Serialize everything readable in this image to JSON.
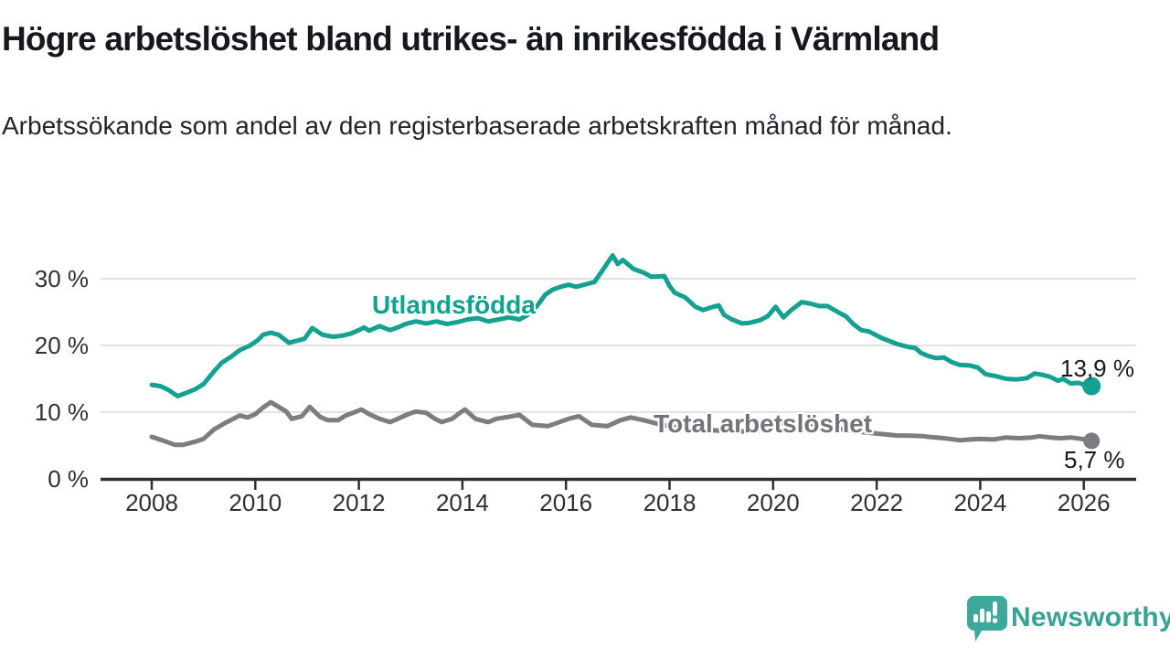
{
  "header": {
    "title": "Högre arbetslöshet bland utrikes- än inrikesfödda i Värmland",
    "subtitle": "Arbetssökande som andel av den registerbaserade arbetskraften månad för månad."
  },
  "chart_data": {
    "type": "line",
    "title": "Högre arbetslöshet bland utrikes- än inrikesfödda i Värmland",
    "subtitle": "Arbetssökande som andel av den registerbaserade arbetskraften månad för månad.",
    "grid": "horizontal-only",
    "x_axis": {
      "range": [
        2007.0,
        2027.0
      ],
      "ticks": [
        2008,
        2010,
        2012,
        2014,
        2016,
        2018,
        2020,
        2022,
        2024,
        2026
      ]
    },
    "y_axis": {
      "unit": "%",
      "range": [
        0,
        35
      ],
      "ticks": [
        {
          "value": 0,
          "label": "0 %"
        },
        {
          "value": 10,
          "label": "10 %"
        },
        {
          "value": 20,
          "label": "20 %"
        },
        {
          "value": 30,
          "label": "30 %"
        }
      ]
    },
    "colors": {
      "series_teal": "#15a191",
      "series_gray": "#7c7c81",
      "gridline": "#d9d9d9",
      "axis": "#2f2f34",
      "axis_text": "#2d3136"
    },
    "series": [
      {
        "name": "Utlandsfödda",
        "color": "#15a191",
        "end_label": "13,9 %",
        "end_value": 13.9,
        "points": [
          [
            2008.0,
            14.1
          ],
          [
            2008.17,
            13.9
          ],
          [
            2008.33,
            13.3
          ],
          [
            2008.5,
            12.4
          ],
          [
            2008.67,
            12.9
          ],
          [
            2008.83,
            13.4
          ],
          [
            2009.0,
            14.2
          ],
          [
            2009.2,
            16.1
          ],
          [
            2009.35,
            17.4
          ],
          [
            2009.55,
            18.4
          ],
          [
            2009.7,
            19.3
          ],
          [
            2009.9,
            20.0
          ],
          [
            2010.05,
            20.8
          ],
          [
            2010.15,
            21.6
          ],
          [
            2010.3,
            21.9
          ],
          [
            2010.45,
            21.6
          ],
          [
            2010.65,
            20.4
          ],
          [
            2010.8,
            20.7
          ],
          [
            2010.95,
            21.0
          ],
          [
            2011.1,
            22.6
          ],
          [
            2011.3,
            21.6
          ],
          [
            2011.5,
            21.3
          ],
          [
            2011.7,
            21.5
          ],
          [
            2011.85,
            21.8
          ],
          [
            2012.0,
            22.3
          ],
          [
            2012.1,
            22.7
          ],
          [
            2012.2,
            22.2
          ],
          [
            2012.4,
            22.9
          ],
          [
            2012.6,
            22.3
          ],
          [
            2012.75,
            22.7
          ],
          [
            2012.9,
            23.2
          ],
          [
            2013.1,
            23.6
          ],
          [
            2013.3,
            23.3
          ],
          [
            2013.5,
            23.6
          ],
          [
            2013.7,
            23.2
          ],
          [
            2013.9,
            23.5
          ],
          [
            2014.1,
            23.9
          ],
          [
            2014.3,
            24.1
          ],
          [
            2014.5,
            23.6
          ],
          [
            2014.7,
            23.9
          ],
          [
            2014.9,
            24.2
          ],
          [
            2015.1,
            23.9
          ],
          [
            2015.25,
            24.5
          ],
          [
            2015.45,
            26.0
          ],
          [
            2015.6,
            27.6
          ],
          [
            2015.75,
            28.4
          ],
          [
            2015.9,
            28.8
          ],
          [
            2016.05,
            29.1
          ],
          [
            2016.2,
            28.8
          ],
          [
            2016.35,
            29.1
          ],
          [
            2016.55,
            29.5
          ],
          [
            2016.7,
            31.2
          ],
          [
            2016.9,
            33.5
          ],
          [
            2017.0,
            32.2
          ],
          [
            2017.1,
            32.8
          ],
          [
            2017.3,
            31.5
          ],
          [
            2017.5,
            30.9
          ],
          [
            2017.65,
            30.3
          ],
          [
            2017.9,
            30.4
          ],
          [
            2018.0,
            28.9
          ],
          [
            2018.1,
            27.9
          ],
          [
            2018.3,
            27.2
          ],
          [
            2018.5,
            25.8
          ],
          [
            2018.65,
            25.3
          ],
          [
            2018.8,
            25.7
          ],
          [
            2018.95,
            26.0
          ],
          [
            2019.05,
            24.6
          ],
          [
            2019.2,
            23.9
          ],
          [
            2019.4,
            23.3
          ],
          [
            2019.55,
            23.4
          ],
          [
            2019.75,
            23.8
          ],
          [
            2019.9,
            24.4
          ],
          [
            2020.05,
            25.8
          ],
          [
            2020.2,
            24.2
          ],
          [
            2020.35,
            25.3
          ],
          [
            2020.55,
            26.5
          ],
          [
            2020.7,
            26.3
          ],
          [
            2020.9,
            25.9
          ],
          [
            2021.05,
            25.9
          ],
          [
            2021.25,
            25.0
          ],
          [
            2021.4,
            24.4
          ],
          [
            2021.55,
            23.2
          ],
          [
            2021.7,
            22.3
          ],
          [
            2021.85,
            22.1
          ],
          [
            2022.1,
            21.1
          ],
          [
            2022.4,
            20.2
          ],
          [
            2022.6,
            19.8
          ],
          [
            2022.75,
            19.6
          ],
          [
            2022.85,
            18.9
          ],
          [
            2023.0,
            18.4
          ],
          [
            2023.15,
            18.1
          ],
          [
            2023.3,
            18.2
          ],
          [
            2023.45,
            17.5
          ],
          [
            2023.6,
            17.1
          ],
          [
            2023.8,
            17.0
          ],
          [
            2023.95,
            16.7
          ],
          [
            2024.1,
            15.7
          ],
          [
            2024.3,
            15.4
          ],
          [
            2024.5,
            15.0
          ],
          [
            2024.7,
            14.9
          ],
          [
            2024.9,
            15.1
          ],
          [
            2025.05,
            15.8
          ],
          [
            2025.2,
            15.6
          ],
          [
            2025.35,
            15.3
          ],
          [
            2025.5,
            14.7
          ],
          [
            2025.6,
            15.0
          ],
          [
            2025.75,
            14.3
          ],
          [
            2025.9,
            14.4
          ],
          [
            2026.0,
            14.1
          ],
          [
            2026.15,
            13.9
          ]
        ]
      },
      {
        "name": "Total arbetslöshet",
        "color": "#7c7c81",
        "end_label": "5,7 %",
        "end_value": 5.7,
        "points": [
          [
            2008.0,
            6.3
          ],
          [
            2008.2,
            5.8
          ],
          [
            2008.45,
            5.1
          ],
          [
            2008.6,
            5.1
          ],
          [
            2008.85,
            5.6
          ],
          [
            2009.0,
            6.0
          ],
          [
            2009.2,
            7.4
          ],
          [
            2009.4,
            8.3
          ],
          [
            2009.6,
            9.1
          ],
          [
            2009.7,
            9.5
          ],
          [
            2009.85,
            9.2
          ],
          [
            2010.0,
            9.7
          ],
          [
            2010.15,
            10.7
          ],
          [
            2010.3,
            11.5
          ],
          [
            2010.45,
            10.8
          ],
          [
            2010.6,
            10.1
          ],
          [
            2010.7,
            9.0
          ],
          [
            2010.9,
            9.4
          ],
          [
            2011.05,
            10.8
          ],
          [
            2011.25,
            9.3
          ],
          [
            2011.4,
            8.8
          ],
          [
            2011.6,
            8.8
          ],
          [
            2011.75,
            9.5
          ],
          [
            2011.95,
            10.1
          ],
          [
            2012.05,
            10.4
          ],
          [
            2012.2,
            9.7
          ],
          [
            2012.4,
            9.0
          ],
          [
            2012.6,
            8.5
          ],
          [
            2012.75,
            9.0
          ],
          [
            2012.95,
            9.7
          ],
          [
            2013.1,
            10.1
          ],
          [
            2013.3,
            9.9
          ],
          [
            2013.45,
            9.1
          ],
          [
            2013.6,
            8.5
          ],
          [
            2013.8,
            9.0
          ],
          [
            2013.95,
            9.9
          ],
          [
            2014.05,
            10.4
          ],
          [
            2014.25,
            9.0
          ],
          [
            2014.5,
            8.5
          ],
          [
            2014.65,
            9.0
          ],
          [
            2014.9,
            9.3
          ],
          [
            2015.1,
            9.6
          ],
          [
            2015.35,
            8.1
          ],
          [
            2015.65,
            7.9
          ],
          [
            2016.05,
            9.0
          ],
          [
            2016.25,
            9.4
          ],
          [
            2016.5,
            8.1
          ],
          [
            2016.8,
            7.9
          ],
          [
            2017.05,
            8.8
          ],
          [
            2017.25,
            9.2
          ],
          [
            2017.5,
            8.8
          ],
          [
            2017.75,
            8.3
          ],
          [
            2018.0,
            7.9
          ],
          [
            2018.3,
            7.6
          ],
          [
            2018.6,
            7.4
          ],
          [
            2019.0,
            7.2
          ],
          [
            2019.5,
            7.1
          ],
          [
            2019.9,
            7.4
          ],
          [
            2020.25,
            8.7
          ],
          [
            2020.6,
            8.4
          ],
          [
            2021.0,
            7.9
          ],
          [
            2021.5,
            7.2
          ],
          [
            2022.0,
            6.8
          ],
          [
            2022.4,
            6.5
          ],
          [
            2022.6,
            6.5
          ],
          [
            2022.9,
            6.4
          ],
          [
            2023.0,
            6.3
          ],
          [
            2023.3,
            6.1
          ],
          [
            2023.6,
            5.8
          ],
          [
            2023.8,
            5.9
          ],
          [
            2024.0,
            6.0
          ],
          [
            2024.25,
            5.9
          ],
          [
            2024.5,
            6.2
          ],
          [
            2024.75,
            6.1
          ],
          [
            2025.0,
            6.2
          ],
          [
            2025.15,
            6.4
          ],
          [
            2025.35,
            6.2
          ],
          [
            2025.55,
            6.1
          ],
          [
            2025.75,
            6.2
          ],
          [
            2025.95,
            6.0
          ],
          [
            2026.15,
            5.7
          ]
        ]
      }
    ]
  },
  "branding": {
    "logo_text": "Newsworthy",
    "logo_color": "#38a296",
    "logo_icon": "speech-bubble-bar-chart"
  }
}
